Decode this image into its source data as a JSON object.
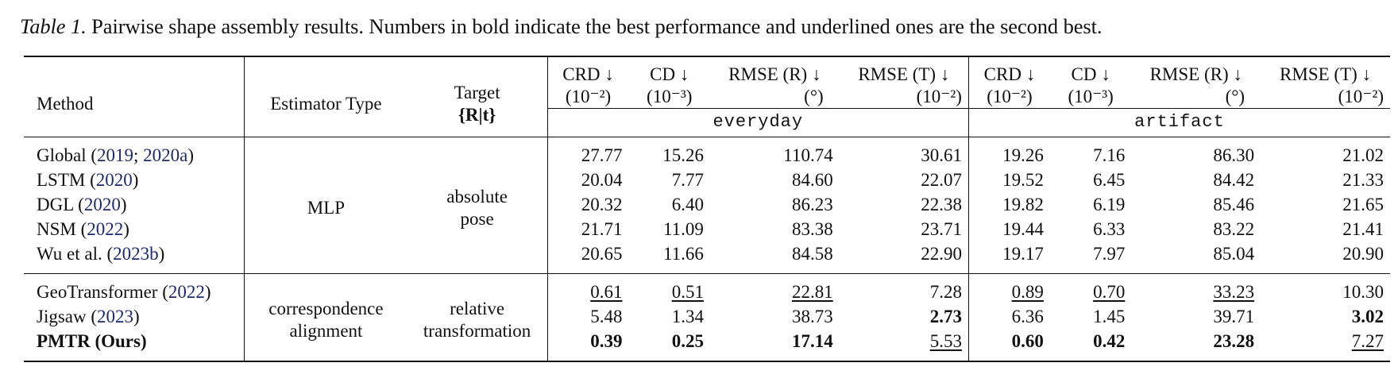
{
  "caption": {
    "label": "Table 1.",
    "text": " Pairwise shape assembly results. Numbers in bold indicate the best performance and underlined ones are the second best."
  },
  "header": {
    "method": "Method",
    "estimator": "Estimator Type",
    "target_line1": "Target",
    "target_line2": "{R|t}",
    "metrics": [
      {
        "name": "CRD ↓",
        "unit": "(10⁻²)"
      },
      {
        "name": "CD ↓",
        "unit": "(10⁻³)"
      },
      {
        "name": "RMSE (R) ↓",
        "unit": "(°)"
      },
      {
        "name": "RMSE (T) ↓",
        "unit": "(10⁻²)"
      }
    ],
    "group_everyday": "everyday",
    "group_artifact": "artifact"
  },
  "group1": {
    "estimator": "MLP",
    "target_line1": "absolute",
    "target_line2": "pose",
    "rows": [
      {
        "name": "Global",
        "cites": [
          "2019",
          "2020a"
        ],
        "vals": [
          "27.77",
          "15.26",
          "110.74",
          "30.61",
          "19.26",
          "7.16",
          "86.30",
          "21.02"
        ]
      },
      {
        "name": "LSTM",
        "cites": [
          "2020"
        ],
        "vals": [
          "20.04",
          "7.77",
          "84.60",
          "22.07",
          "19.52",
          "6.45",
          "84.42",
          "21.33"
        ]
      },
      {
        "name": "DGL",
        "cites": [
          "2020"
        ],
        "vals": [
          "20.32",
          "6.40",
          "86.23",
          "22.38",
          "19.82",
          "6.19",
          "85.46",
          "21.65"
        ]
      },
      {
        "name": "NSM",
        "cites": [
          "2022"
        ],
        "vals": [
          "21.71",
          "11.09",
          "83.38",
          "23.71",
          "19.44",
          "6.33",
          "83.22",
          "21.41"
        ]
      },
      {
        "name": "Wu et al.",
        "cites": [
          "2023b"
        ],
        "vals": [
          "20.65",
          "11.66",
          "84.58",
          "22.90",
          "19.17",
          "7.97",
          "85.04",
          "20.90"
        ]
      }
    ]
  },
  "group2": {
    "estimator_line1": "correspondence",
    "estimator_line2": "alignment",
    "target_line1": "relative",
    "target_line2": "transformation",
    "rows": [
      {
        "name": "GeoTransformer",
        "cites": [
          "2022"
        ],
        "vals": [
          "0.61",
          "0.51",
          "22.81",
          "7.28",
          "0.89",
          "0.70",
          "33.23",
          "10.30"
        ]
      },
      {
        "name": "Jigsaw",
        "cites": [
          "2023"
        ],
        "vals": [
          "5.48",
          "1.34",
          "38.73",
          "2.73",
          "6.36",
          "1.45",
          "39.71",
          "3.02"
        ]
      },
      {
        "name": "PMTR (Ours)",
        "cites": [],
        "vals": [
          "0.39",
          "0.25",
          "17.14",
          "5.53",
          "0.60",
          "0.42",
          "23.28",
          "7.27"
        ]
      }
    ]
  }
}
